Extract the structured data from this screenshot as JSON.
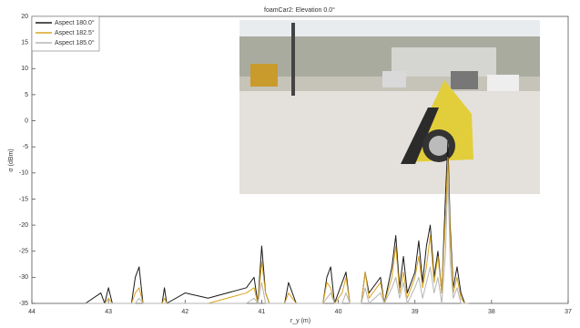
{
  "chart_data": {
    "type": "line",
    "title": "foamCar2: Elevation 0.0°",
    "x_label": "r_y (m)",
    "y_label": "σ (dBm)",
    "xlim": [
      44,
      37
    ],
    "xticks": [
      44,
      43,
      42,
      41,
      40,
      39,
      38,
      37
    ],
    "ylim": [
      -35,
      20
    ],
    "yticks": [
      -35,
      -30,
      -25,
      -20,
      -15,
      -10,
      -5,
      0,
      5,
      10,
      15,
      20
    ],
    "legend": "upper left",
    "x": [
      43.3,
      43.1,
      43.05,
      43.0,
      42.95,
      42.7,
      42.65,
      42.6,
      42.55,
      42.3,
      42.27,
      42.24,
      42.0,
      41.7,
      41.2,
      41.1,
      41.05,
      41.0,
      40.95,
      40.9,
      40.7,
      40.65,
      40.6,
      40.55,
      40.2,
      40.15,
      40.1,
      40.05,
      39.95,
      39.9,
      39.85,
      39.7,
      39.65,
      39.6,
      39.45,
      39.4,
      39.3,
      39.25,
      39.2,
      39.15,
      39.1,
      39.0,
      38.95,
      38.9,
      38.85,
      38.8,
      38.75,
      38.7,
      38.65,
      38.6,
      38.57,
      38.54,
      38.5,
      38.45,
      38.4,
      38.35,
      38.3
    ],
    "series": [
      {
        "name": "Aspect 180.0°",
        "color": "#1a1a1a",
        "values": [
          -35,
          -33,
          -35,
          -32,
          -35,
          -35,
          -30,
          -28,
          -35,
          -35,
          -32,
          -35,
          -33,
          -34,
          -32,
          -30,
          -35,
          -24,
          -33,
          -35,
          -35,
          -31,
          -33,
          -35,
          -35,
          -30,
          -28,
          -35,
          -31,
          -29,
          -35,
          -35,
          -29,
          -33,
          -30,
          -35,
          -28,
          -22,
          -32,
          -26,
          -33,
          -29,
          -23,
          -31,
          -24,
          -20,
          -30,
          -25,
          -33,
          -14,
          -4,
          -20,
          -32,
          -28,
          -33,
          -35,
          -35
        ]
      },
      {
        "name": "Aspect 182.5°",
        "color": "#d9a520",
        "values": [
          -35,
          -35,
          -35,
          -34,
          -35,
          -35,
          -33,
          -32,
          -35,
          -35,
          -34,
          -35,
          -35,
          -35,
          -33,
          -32,
          -35,
          -27,
          -33,
          -35,
          -35,
          -33,
          -34,
          -35,
          -35,
          -31,
          -32,
          -35,
          -33,
          -30,
          -35,
          -35,
          -29,
          -34,
          -31,
          -35,
          -30,
          -24,
          -33,
          -29,
          -34,
          -30,
          -26,
          -32,
          -28,
          -22,
          -31,
          -26,
          -33,
          -18,
          -7,
          -22,
          -33,
          -30,
          -34,
          -35,
          -35
        ]
      },
      {
        "name": "Aspect 185.0°",
        "color": "#b5b5b5",
        "values": [
          -35,
          -35,
          -35,
          -35,
          -35,
          -35,
          -35,
          -34,
          -35,
          -35,
          -35,
          -35,
          -35,
          -35,
          -35,
          -34,
          -35,
          -31,
          -35,
          -35,
          -35,
          -35,
          -35,
          -35,
          -35,
          -34,
          -33,
          -35,
          -35,
          -33,
          -35,
          -35,
          -32,
          -35,
          -33,
          -35,
          -32,
          -30,
          -34,
          -31,
          -35,
          -32,
          -30,
          -34,
          -31,
          -28,
          -33,
          -30,
          -35,
          -25,
          -10,
          -27,
          -34,
          -32,
          -35,
          -35,
          -35
        ]
      }
    ]
  }
}
